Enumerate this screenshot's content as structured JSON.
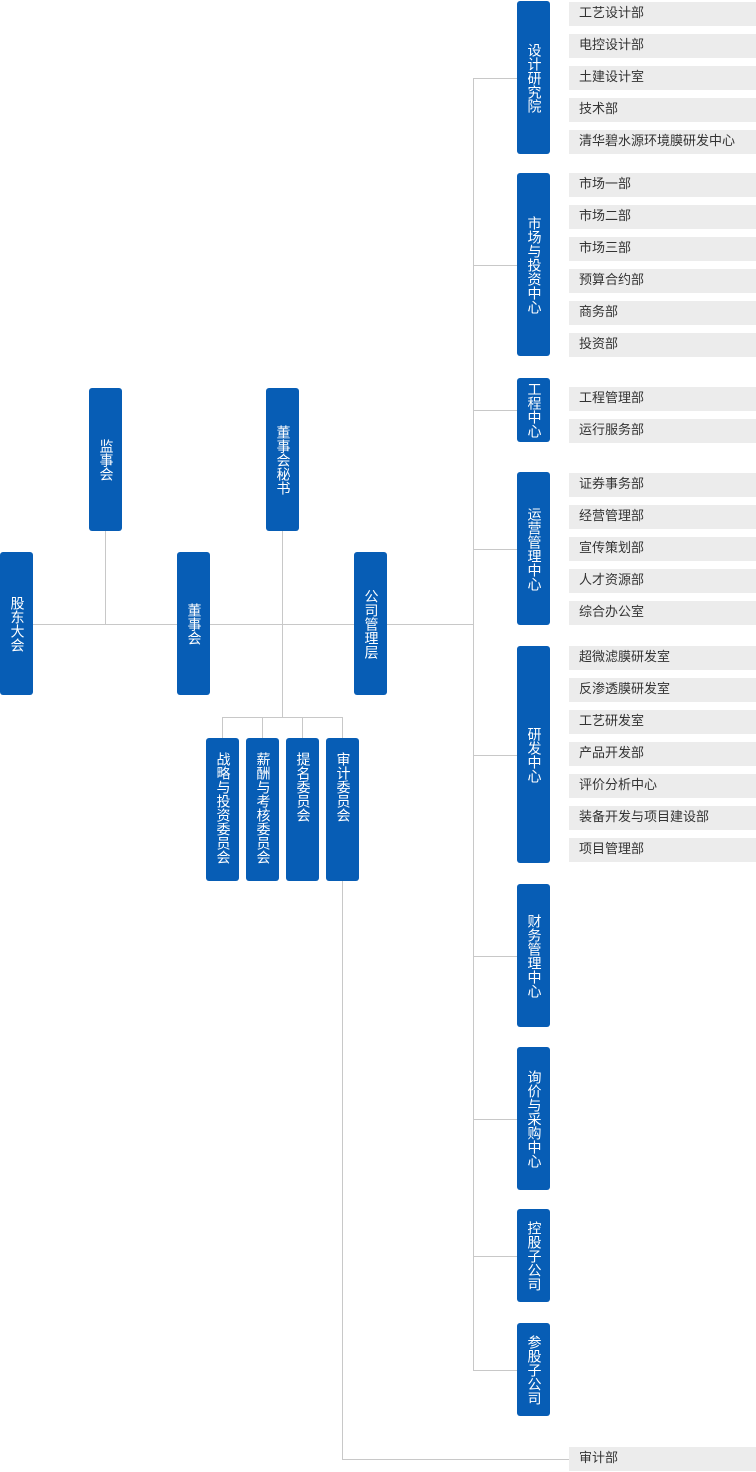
{
  "colors": {
    "box": "#075db5",
    "sub_box": "#ececec",
    "line": "#c8c8c8"
  },
  "top": {
    "shareholders": "股东大会",
    "supervisors": "监事会",
    "board": "董事会",
    "board_secretary": "董事会秘书",
    "management": "公司管理层"
  },
  "committees": [
    "战略与投资委员会",
    "薪酬与考核委员会",
    "提名委员会",
    "审计委员会"
  ],
  "audit_dept": "审计部",
  "centers": [
    {
      "name": "设计研究院",
      "items": [
        "工艺设计部",
        "电控设计部",
        "土建设计室",
        "技术部",
        "清华碧水源环境膜研发中心"
      ]
    },
    {
      "name": "市场与投资中心",
      "items": [
        "市场一部",
        "市场二部",
        "市场三部",
        "预算合约部",
        "商务部",
        "投资部"
      ]
    },
    {
      "name": "工程中心",
      "items": [
        "工程管理部",
        "运行服务部"
      ]
    },
    {
      "name": "运营管理中心",
      "items": [
        "证券事务部",
        "经营管理部",
        "宣传策划部",
        "人才资源部",
        "综合办公室"
      ]
    },
    {
      "name": "研发中心",
      "items": [
        "超微滤膜研发室",
        "反渗透膜研发室",
        "工艺研发室",
        "产品开发部",
        "评价分析中心",
        "装备开发与项目建设部",
        "项目管理部"
      ]
    },
    {
      "name": "财务管理中心",
      "items": []
    },
    {
      "name": "询价与采购中心",
      "items": []
    },
    {
      "name": "控股子公司",
      "items": []
    },
    {
      "name": "参股子公司",
      "items": []
    }
  ]
}
